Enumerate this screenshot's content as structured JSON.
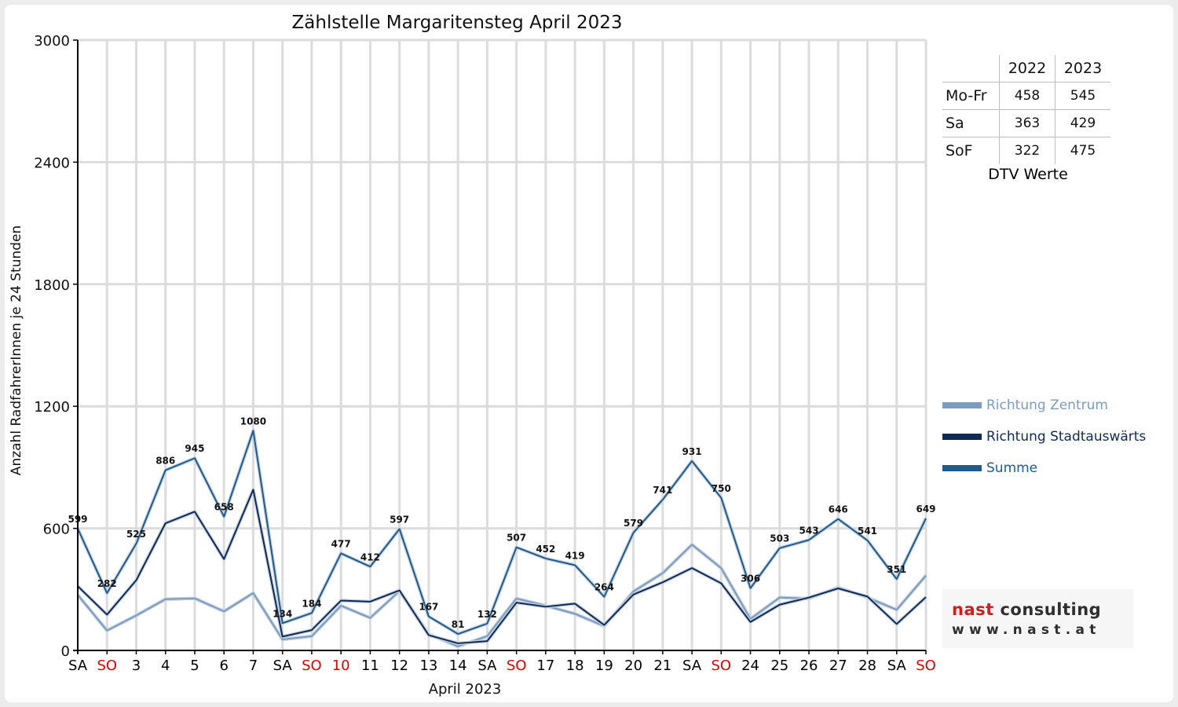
{
  "chart_data": {
    "type": "line",
    "title": "Zählstelle Margaritensteg April 2023",
    "xlabel": "April 2023",
    "ylabel": "Anzahl RadfahrerInnen je 24 Stunden",
    "ylim": [
      0,
      3000
    ],
    "yticks": [
      "0",
      "600",
      "1200",
      "1800",
      "2400",
      "3000"
    ],
    "categories": [
      "SA",
      "SO",
      "3",
      "4",
      "5",
      "6",
      "7",
      "SA",
      "SO",
      "10",
      "11",
      "12",
      "13",
      "14",
      "SA",
      "SO",
      "17",
      "18",
      "19",
      "20",
      "21",
      "SA",
      "SO",
      "24",
      "25",
      "26",
      "27",
      "28",
      "SA",
      "SO"
    ],
    "red_categories": [
      1,
      8,
      9,
      15,
      22,
      29
    ],
    "series": [
      {
        "name": "Richtung Zentrum",
        "color": "#7a9cbf",
        "values": [
          273,
          98,
          172,
          252,
          256,
          192,
          282,
          54,
          70,
          220,
          160,
          292,
          80,
          20,
          70,
          255,
          220,
          180,
          120,
          290,
          380,
          520,
          405,
          155,
          260,
          255,
          310,
          260,
          200,
          368
        ]
      },
      {
        "name": "Richtung Stadtauswärts",
        "color": "#0f2b55",
        "values": [
          316,
          176,
          345,
          625,
          682,
          449,
          790,
          68,
          100,
          245,
          240,
          295,
          75,
          35,
          46,
          235,
          215,
          230,
          125,
          275,
          335,
          405,
          330,
          140,
          225,
          260,
          305,
          265,
          130,
          262
        ]
      },
      {
        "name": "Summe",
        "color": "#1f5c8d",
        "values": [
          599,
          282,
          525,
          886,
          945,
          658,
          1080,
          134,
          184,
          477,
          412,
          597,
          167,
          81,
          132,
          507,
          452,
          419,
          264,
          579,
          741,
          931,
          750,
          306,
          503,
          543,
          646,
          541,
          351,
          649
        ],
        "labels": [
          "599",
          "282",
          "525",
          "886",
          "945",
          "658",
          "1080",
          "134",
          "184",
          "477",
          "412",
          "597",
          "167",
          "81",
          "132",
          "507",
          "452",
          "419",
          "264",
          "579",
          "741",
          "931",
          "750",
          "306",
          "503",
          "543",
          "646",
          "541",
          "351",
          "649"
        ]
      }
    ],
    "grid": true,
    "legend": "right"
  },
  "dtv": {
    "years": [
      "2022",
      "2023"
    ],
    "rows": [
      {
        "label": "Mo-Fr",
        "v2022": "458",
        "v2023": "545"
      },
      {
        "label": "Sa",
        "v2022": "363",
        "v2023": "429"
      },
      {
        "label": "SoF",
        "v2022": "322",
        "v2023": "475"
      }
    ],
    "caption": "DTV Werte"
  },
  "logo": {
    "line1a": "nast",
    "line1b": "consulting",
    "line2": "www.nast.at"
  },
  "colors": {
    "weekday_label": "#000000",
    "holiday_label": "#e00000"
  }
}
